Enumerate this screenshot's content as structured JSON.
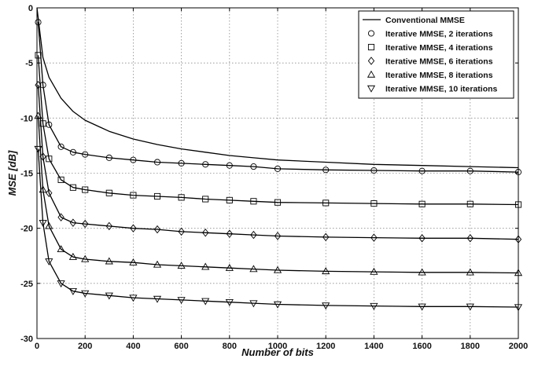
{
  "chart_data": {
    "type": "line",
    "xlabel": "Number of bits",
    "ylabel": "MSE [dB]",
    "xlim": [
      0,
      2000
    ],
    "ylim": [
      -30,
      0
    ],
    "xticks": [
      0,
      200,
      400,
      600,
      800,
      1000,
      1200,
      1400,
      1600,
      1800,
      2000
    ],
    "yticks": [
      0,
      -5,
      -10,
      -15,
      -20,
      -25,
      -30
    ],
    "grid": true,
    "legend_position": "top-right",
    "series": [
      {
        "name": "Conventional MMSE",
        "marker": "none",
        "x": [
          0,
          25,
          50,
          100,
          150,
          200,
          300,
          400,
          500,
          600,
          700,
          800,
          900,
          1000,
          1200,
          1400,
          1600,
          1800,
          2000
        ],
        "y": [
          0,
          -4.5,
          -6.3,
          -8.2,
          -9.4,
          -10.2,
          -11.2,
          -11.9,
          -12.4,
          -12.8,
          -13.1,
          -13.4,
          -13.6,
          -13.8,
          -14.0,
          -14.2,
          -14.3,
          -14.4,
          -14.5
        ]
      },
      {
        "name": "Iterative MMSE, 2 iterations",
        "marker": "circle",
        "x": [
          5,
          25,
          50,
          100,
          150,
          200,
          300,
          400,
          500,
          600,
          700,
          800,
          900,
          1000,
          1200,
          1400,
          1600,
          1800,
          2000
        ],
        "y": [
          -1.3,
          -7.0,
          -10.6,
          -12.6,
          -13.1,
          -13.3,
          -13.6,
          -13.8,
          -14.0,
          -14.1,
          -14.2,
          -14.3,
          -14.4,
          -14.6,
          -14.7,
          -14.75,
          -14.8,
          -14.8,
          -14.9
        ]
      },
      {
        "name": "Iterative MMSE, 4 iterations",
        "marker": "square",
        "x": [
          5,
          25,
          50,
          100,
          150,
          200,
          300,
          400,
          500,
          600,
          700,
          800,
          900,
          1000,
          1200,
          1400,
          1600,
          1800,
          2000
        ],
        "y": [
          -4.3,
          -10.5,
          -13.7,
          -15.6,
          -16.3,
          -16.5,
          -16.8,
          -17.0,
          -17.1,
          -17.2,
          -17.35,
          -17.45,
          -17.55,
          -17.65,
          -17.7,
          -17.75,
          -17.8,
          -17.8,
          -17.85
        ]
      },
      {
        "name": "Iterative MMSE, 6 iterations",
        "marker": "diamond",
        "x": [
          5,
          25,
          50,
          100,
          150,
          200,
          300,
          400,
          500,
          600,
          700,
          800,
          900,
          1000,
          1200,
          1400,
          1600,
          1800,
          2000
        ],
        "y": [
          -7.0,
          -13.5,
          -16.8,
          -19.0,
          -19.5,
          -19.6,
          -19.8,
          -20.0,
          -20.1,
          -20.3,
          -20.4,
          -20.5,
          -20.6,
          -20.7,
          -20.8,
          -20.85,
          -20.9,
          -20.9,
          -21.0
        ]
      },
      {
        "name": "Iterative MMSE, 8 iterations",
        "marker": "triangle-up",
        "x": [
          5,
          25,
          50,
          100,
          150,
          200,
          300,
          400,
          500,
          600,
          700,
          800,
          900,
          1000,
          1200,
          1400,
          1600,
          1800,
          2000
        ],
        "y": [
          -9.8,
          -16.5,
          -19.8,
          -21.9,
          -22.6,
          -22.8,
          -23.0,
          -23.1,
          -23.3,
          -23.4,
          -23.5,
          -23.6,
          -23.7,
          -23.8,
          -23.9,
          -23.95,
          -24.0,
          -24.0,
          -24.05
        ]
      },
      {
        "name": "Iterative MMSE, 10 iterations",
        "marker": "triangle-down",
        "x": [
          5,
          25,
          50,
          100,
          150,
          200,
          300,
          400,
          500,
          600,
          700,
          800,
          900,
          1000,
          1200,
          1400,
          1600,
          1800,
          2000
        ],
        "y": [
          -12.8,
          -19.5,
          -23.0,
          -25.0,
          -25.7,
          -25.9,
          -26.1,
          -26.3,
          -26.4,
          -26.5,
          -26.6,
          -26.7,
          -26.8,
          -26.9,
          -27.0,
          -27.05,
          -27.1,
          -27.1,
          -27.15
        ]
      }
    ]
  }
}
